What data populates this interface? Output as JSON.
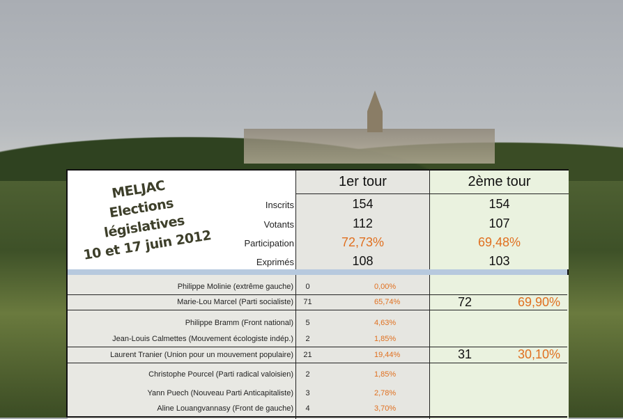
{
  "title": {
    "line1": "MELJAC",
    "line2": "Elections législatives",
    "line3": "10 et 17 juin 2012"
  },
  "headers": {
    "round1": "1er tour",
    "round2": "2ème tour"
  },
  "stats": [
    {
      "label": "Inscrits",
      "r1": "154",
      "r2": "154"
    },
    {
      "label": "Votants",
      "r1": "112",
      "r2": "107"
    },
    {
      "label": "Participation",
      "r1": "72,73%",
      "r2": "69,48%"
    },
    {
      "label": "Exprimés",
      "r1": "108",
      "r2": "103"
    }
  ],
  "candidates": [
    {
      "name": "Philippe Molinie (extrême gauche)",
      "votes": "0",
      "pct": "0,00%"
    },
    {
      "name": "Marie-Lou Marcel (Parti socialiste)",
      "votes": "71",
      "pct": "65,74%",
      "votes2": "72",
      "pct2": "69,90%"
    },
    {
      "name": "Philippe Bramm (Front national)",
      "votes": "5",
      "pct": "4,63%"
    },
    {
      "name": "Jean-Louis Calmettes (Mouvement écologiste indép.)",
      "votes": "2",
      "pct": "1,85%"
    },
    {
      "name": "Laurent Tranier (Union pour un mouvement populaire)",
      "votes": "21",
      "pct": "19,44%",
      "votes2": "31",
      "pct2": "30,10%"
    },
    {
      "name": "Christophe Pourcel (Parti radical valoisien)",
      "votes": "2",
      "pct": "1,85%"
    },
    {
      "name": "Yann Puech (Nouveau Parti Anticapitaliste)",
      "votes": "3",
      "pct": "2,78%"
    },
    {
      "name": "Aline Louangvannasy  (Front de gauche)",
      "votes": "4",
      "pct": "3,70%"
    }
  ],
  "colors": {
    "percent": "#e07020",
    "round1_bg": "#e6e6e1",
    "round2_bg": "#eaf2df",
    "separator": "#b7c9de"
  }
}
